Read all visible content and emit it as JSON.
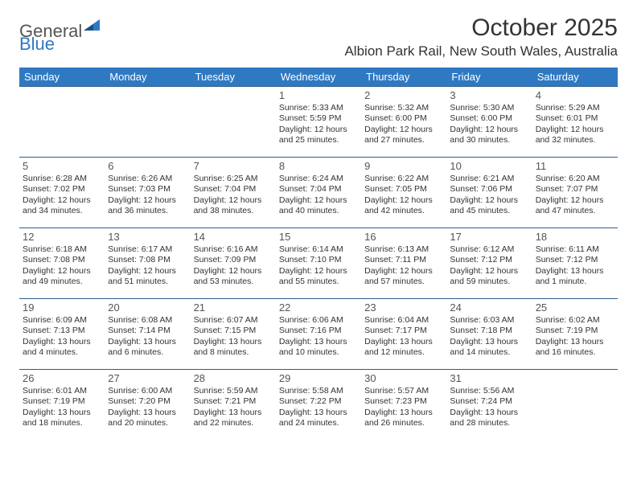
{
  "logo": {
    "part1": "General",
    "part2": "Blue"
  },
  "title": "October 2025",
  "location": "Albion Park Rail, New South Wales, Australia",
  "colors": {
    "header_bg": "#2f79c2",
    "header_text": "#ffffff",
    "cell_border": "#2f5c8a",
    "body_text": "#333333",
    "logo_accent": "#2f79c2"
  },
  "weekdays": [
    "Sunday",
    "Monday",
    "Tuesday",
    "Wednesday",
    "Thursday",
    "Friday",
    "Saturday"
  ],
  "weeks": [
    [
      null,
      null,
      null,
      {
        "n": "1",
        "sr": "Sunrise: 5:33 AM",
        "ss": "Sunset: 5:59 PM",
        "d1": "Daylight: 12 hours",
        "d2": "and 25 minutes."
      },
      {
        "n": "2",
        "sr": "Sunrise: 5:32 AM",
        "ss": "Sunset: 6:00 PM",
        "d1": "Daylight: 12 hours",
        "d2": "and 27 minutes."
      },
      {
        "n": "3",
        "sr": "Sunrise: 5:30 AM",
        "ss": "Sunset: 6:00 PM",
        "d1": "Daylight: 12 hours",
        "d2": "and 30 minutes."
      },
      {
        "n": "4",
        "sr": "Sunrise: 5:29 AM",
        "ss": "Sunset: 6:01 PM",
        "d1": "Daylight: 12 hours",
        "d2": "and 32 minutes."
      }
    ],
    [
      {
        "n": "5",
        "sr": "Sunrise: 6:28 AM",
        "ss": "Sunset: 7:02 PM",
        "d1": "Daylight: 12 hours",
        "d2": "and 34 minutes."
      },
      {
        "n": "6",
        "sr": "Sunrise: 6:26 AM",
        "ss": "Sunset: 7:03 PM",
        "d1": "Daylight: 12 hours",
        "d2": "and 36 minutes."
      },
      {
        "n": "7",
        "sr": "Sunrise: 6:25 AM",
        "ss": "Sunset: 7:04 PM",
        "d1": "Daylight: 12 hours",
        "d2": "and 38 minutes."
      },
      {
        "n": "8",
        "sr": "Sunrise: 6:24 AM",
        "ss": "Sunset: 7:04 PM",
        "d1": "Daylight: 12 hours",
        "d2": "and 40 minutes."
      },
      {
        "n": "9",
        "sr": "Sunrise: 6:22 AM",
        "ss": "Sunset: 7:05 PM",
        "d1": "Daylight: 12 hours",
        "d2": "and 42 minutes."
      },
      {
        "n": "10",
        "sr": "Sunrise: 6:21 AM",
        "ss": "Sunset: 7:06 PM",
        "d1": "Daylight: 12 hours",
        "d2": "and 45 minutes."
      },
      {
        "n": "11",
        "sr": "Sunrise: 6:20 AM",
        "ss": "Sunset: 7:07 PM",
        "d1": "Daylight: 12 hours",
        "d2": "and 47 minutes."
      }
    ],
    [
      {
        "n": "12",
        "sr": "Sunrise: 6:18 AM",
        "ss": "Sunset: 7:08 PM",
        "d1": "Daylight: 12 hours",
        "d2": "and 49 minutes."
      },
      {
        "n": "13",
        "sr": "Sunrise: 6:17 AM",
        "ss": "Sunset: 7:08 PM",
        "d1": "Daylight: 12 hours",
        "d2": "and 51 minutes."
      },
      {
        "n": "14",
        "sr": "Sunrise: 6:16 AM",
        "ss": "Sunset: 7:09 PM",
        "d1": "Daylight: 12 hours",
        "d2": "and 53 minutes."
      },
      {
        "n": "15",
        "sr": "Sunrise: 6:14 AM",
        "ss": "Sunset: 7:10 PM",
        "d1": "Daylight: 12 hours",
        "d2": "and 55 minutes."
      },
      {
        "n": "16",
        "sr": "Sunrise: 6:13 AM",
        "ss": "Sunset: 7:11 PM",
        "d1": "Daylight: 12 hours",
        "d2": "and 57 minutes."
      },
      {
        "n": "17",
        "sr": "Sunrise: 6:12 AM",
        "ss": "Sunset: 7:12 PM",
        "d1": "Daylight: 12 hours",
        "d2": "and 59 minutes."
      },
      {
        "n": "18",
        "sr": "Sunrise: 6:11 AM",
        "ss": "Sunset: 7:12 PM",
        "d1": "Daylight: 13 hours",
        "d2": "and 1 minute."
      }
    ],
    [
      {
        "n": "19",
        "sr": "Sunrise: 6:09 AM",
        "ss": "Sunset: 7:13 PM",
        "d1": "Daylight: 13 hours",
        "d2": "and 4 minutes."
      },
      {
        "n": "20",
        "sr": "Sunrise: 6:08 AM",
        "ss": "Sunset: 7:14 PM",
        "d1": "Daylight: 13 hours",
        "d2": "and 6 minutes."
      },
      {
        "n": "21",
        "sr": "Sunrise: 6:07 AM",
        "ss": "Sunset: 7:15 PM",
        "d1": "Daylight: 13 hours",
        "d2": "and 8 minutes."
      },
      {
        "n": "22",
        "sr": "Sunrise: 6:06 AM",
        "ss": "Sunset: 7:16 PM",
        "d1": "Daylight: 13 hours",
        "d2": "and 10 minutes."
      },
      {
        "n": "23",
        "sr": "Sunrise: 6:04 AM",
        "ss": "Sunset: 7:17 PM",
        "d1": "Daylight: 13 hours",
        "d2": "and 12 minutes."
      },
      {
        "n": "24",
        "sr": "Sunrise: 6:03 AM",
        "ss": "Sunset: 7:18 PM",
        "d1": "Daylight: 13 hours",
        "d2": "and 14 minutes."
      },
      {
        "n": "25",
        "sr": "Sunrise: 6:02 AM",
        "ss": "Sunset: 7:19 PM",
        "d1": "Daylight: 13 hours",
        "d2": "and 16 minutes."
      }
    ],
    [
      {
        "n": "26",
        "sr": "Sunrise: 6:01 AM",
        "ss": "Sunset: 7:19 PM",
        "d1": "Daylight: 13 hours",
        "d2": "and 18 minutes."
      },
      {
        "n": "27",
        "sr": "Sunrise: 6:00 AM",
        "ss": "Sunset: 7:20 PM",
        "d1": "Daylight: 13 hours",
        "d2": "and 20 minutes."
      },
      {
        "n": "28",
        "sr": "Sunrise: 5:59 AM",
        "ss": "Sunset: 7:21 PM",
        "d1": "Daylight: 13 hours",
        "d2": "and 22 minutes."
      },
      {
        "n": "29",
        "sr": "Sunrise: 5:58 AM",
        "ss": "Sunset: 7:22 PM",
        "d1": "Daylight: 13 hours",
        "d2": "and 24 minutes."
      },
      {
        "n": "30",
        "sr": "Sunrise: 5:57 AM",
        "ss": "Sunset: 7:23 PM",
        "d1": "Daylight: 13 hours",
        "d2": "and 26 minutes."
      },
      {
        "n": "31",
        "sr": "Sunrise: 5:56 AM",
        "ss": "Sunset: 7:24 PM",
        "d1": "Daylight: 13 hours",
        "d2": "and 28 minutes."
      },
      null
    ]
  ]
}
